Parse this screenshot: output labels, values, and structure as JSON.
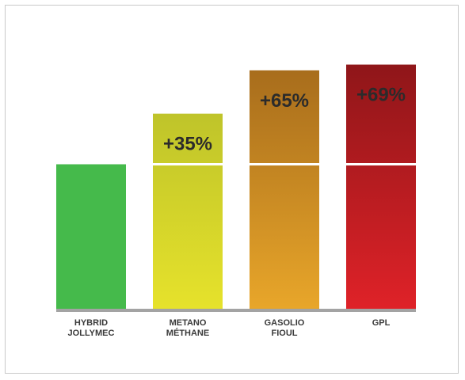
{
  "chart_data": {
    "type": "bar",
    "categories": [
      [
        "HYBRID",
        "JOLLYMEC"
      ],
      [
        "METANO",
        "MÉTHANE"
      ],
      [
        "GASOLIO",
        "FIOUL"
      ],
      [
        "GPL"
      ]
    ],
    "values": [
      100,
      135,
      165,
      169
    ],
    "labels": [
      "",
      "+35%",
      "+65%",
      "+69%"
    ],
    "baseline_value": 100,
    "ylim": [
      0,
      200
    ],
    "grid": false,
    "colors": [
      [
        "#45ba4b",
        "#45ba4b"
      ],
      [
        "#bfc42a",
        "#e6e22b"
      ],
      [
        "#a86d1c",
        "#e8a62a"
      ],
      [
        "#8f1619",
        "#df2228"
      ]
    ],
    "axis_color": "#a3a3a3",
    "divider_color": "#ffffff"
  }
}
